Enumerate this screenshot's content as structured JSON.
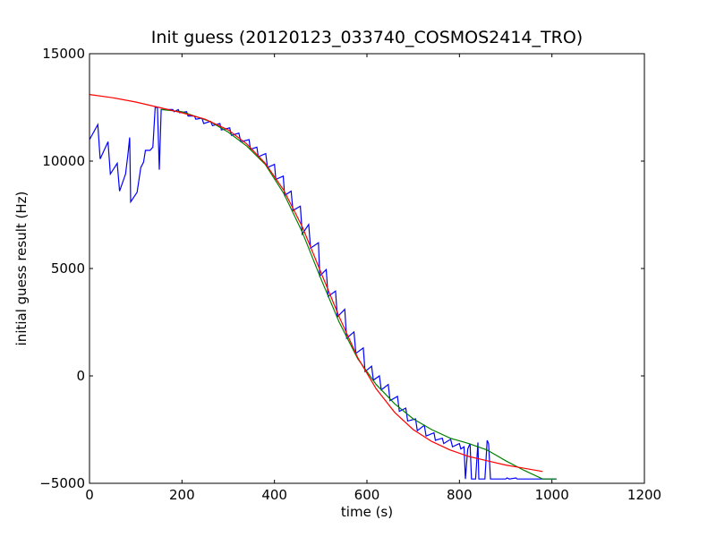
{
  "chart_data": {
    "type": "line",
    "title": "Init guess (20120123_033740_COSMOS2414_TRO)",
    "xlabel": "time (s)",
    "ylabel": "initial guess result (Hz)",
    "xlim": [
      0,
      1200
    ],
    "ylim": [
      -5000,
      15000
    ],
    "x_ticks": [
      "0",
      "200",
      "400",
      "600",
      "800",
      "1000",
      "1200"
    ],
    "y_ticks": [
      "−5000",
      "0",
      "5000",
      "10000",
      "15000"
    ],
    "x_tick_values": [
      0,
      200,
      400,
      600,
      800,
      1000,
      1200
    ],
    "y_tick_values": [
      -5000,
      0,
      5000,
      10000,
      15000
    ],
    "grid": false,
    "legend": "none",
    "series": [
      {
        "color": "#0000ff",
        "points": [
          [
            0,
            11000
          ],
          [
            18,
            11700
          ],
          [
            23,
            10100
          ],
          [
            40,
            10900
          ],
          [
            45,
            9400
          ],
          [
            60,
            9900
          ],
          [
            65,
            8600
          ],
          [
            78,
            9400
          ],
          [
            83,
            10300
          ],
          [
            87,
            11100
          ],
          [
            89,
            8100
          ],
          [
            103,
            8550
          ],
          [
            111,
            9700
          ],
          [
            117,
            9950
          ],
          [
            121,
            10500
          ],
          [
            131,
            10500
          ],
          [
            137,
            10650
          ],
          [
            142,
            12500
          ],
          [
            147,
            12500
          ],
          [
            151,
            9600
          ],
          [
            155,
            12400
          ],
          [
            180,
            12400
          ],
          [
            183,
            12300
          ],
          [
            192,
            12400
          ],
          [
            195,
            12250
          ],
          [
            210,
            12300
          ],
          [
            213,
            12100
          ],
          [
            227,
            12100
          ],
          [
            230,
            11950
          ],
          [
            243,
            12000
          ],
          [
            247,
            11750
          ],
          [
            262,
            11850
          ],
          [
            266,
            11650
          ],
          [
            282,
            11750
          ],
          [
            285,
            11450
          ],
          [
            303,
            11550
          ],
          [
            307,
            11200
          ],
          [
            323,
            11300
          ],
          [
            327,
            10900
          ],
          [
            345,
            11000
          ],
          [
            348,
            10550
          ],
          [
            362,
            10650
          ],
          [
            365,
            10200
          ],
          [
            381,
            10350
          ],
          [
            385,
            9700
          ],
          [
            400,
            9850
          ],
          [
            403,
            9150
          ],
          [
            419,
            9300
          ],
          [
            422,
            8400
          ],
          [
            436,
            8600
          ],
          [
            440,
            7700
          ],
          [
            456,
            7900
          ],
          [
            460,
            6600
          ],
          [
            474,
            7050
          ],
          [
            478,
            5950
          ],
          [
            495,
            6200
          ],
          [
            498,
            4650
          ],
          [
            512,
            4950
          ],
          [
            516,
            3700
          ],
          [
            532,
            3950
          ],
          [
            536,
            2750
          ],
          [
            552,
            3100
          ],
          [
            556,
            1750
          ],
          [
            572,
            2050
          ],
          [
            576,
            1050
          ],
          [
            592,
            1300
          ],
          [
            596,
            200
          ],
          [
            610,
            450
          ],
          [
            614,
            -200
          ],
          [
            627,
            0
          ],
          [
            631,
            -650
          ],
          [
            646,
            -400
          ],
          [
            650,
            -1150
          ],
          [
            666,
            -950
          ],
          [
            670,
            -1650
          ],
          [
            684,
            -1500
          ],
          [
            688,
            -2100
          ],
          [
            705,
            -2000
          ],
          [
            709,
            -2550
          ],
          [
            724,
            -2300
          ],
          [
            728,
            -2800
          ],
          [
            745,
            -2650
          ],
          [
            748,
            -3000
          ],
          [
            763,
            -2900
          ],
          [
            766,
            -3150
          ],
          [
            781,
            -2950
          ],
          [
            785,
            -3300
          ],
          [
            800,
            -3150
          ],
          [
            803,
            -3400
          ],
          [
            810,
            -3300
          ],
          [
            813,
            -4800
          ],
          [
            818,
            -3400
          ],
          [
            823,
            -3150
          ],
          [
            826,
            -4800
          ],
          [
            835,
            -4800
          ],
          [
            840,
            -3100
          ],
          [
            842,
            -4800
          ],
          [
            855,
            -4800
          ],
          [
            860,
            -3000
          ],
          [
            863,
            -3150
          ],
          [
            867,
            -4800
          ],
          [
            900,
            -4800
          ],
          [
            903,
            -4750
          ],
          [
            908,
            -4800
          ],
          [
            922,
            -4750
          ],
          [
            925,
            -4800
          ],
          [
            1010,
            -4800
          ]
        ]
      },
      {
        "color": "#008000",
        "points": [
          [
            155,
            12400
          ],
          [
            200,
            12300
          ],
          [
            260,
            11850
          ],
          [
            300,
            11350
          ],
          [
            340,
            10700
          ],
          [
            380,
            9850
          ],
          [
            420,
            8500
          ],
          [
            460,
            6700
          ],
          [
            500,
            4550
          ],
          [
            540,
            2500
          ],
          [
            580,
            800
          ],
          [
            620,
            -400
          ],
          [
            660,
            -1300
          ],
          [
            700,
            -2000
          ],
          [
            740,
            -2500
          ],
          [
            780,
            -2900
          ],
          [
            820,
            -3150
          ],
          [
            860,
            -3450
          ],
          [
            900,
            -3950
          ],
          [
            940,
            -4400
          ],
          [
            980,
            -4800
          ],
          [
            1010,
            -4800
          ]
        ]
      },
      {
        "color": "#ff0000",
        "points": [
          [
            0,
            13100
          ],
          [
            50,
            12950
          ],
          [
            100,
            12750
          ],
          [
            150,
            12500
          ],
          [
            200,
            12250
          ],
          [
            250,
            11950
          ],
          [
            300,
            11450
          ],
          [
            340,
            10800
          ],
          [
            380,
            9900
          ],
          [
            420,
            8650
          ],
          [
            460,
            6950
          ],
          [
            500,
            4850
          ],
          [
            540,
            2750
          ],
          [
            580,
            850
          ],
          [
            620,
            -600
          ],
          [
            660,
            -1700
          ],
          [
            700,
            -2500
          ],
          [
            740,
            -3050
          ],
          [
            780,
            -3450
          ],
          [
            820,
            -3750
          ],
          [
            860,
            -3950
          ],
          [
            900,
            -4150
          ],
          [
            940,
            -4300
          ],
          [
            980,
            -4450
          ]
        ]
      }
    ]
  }
}
